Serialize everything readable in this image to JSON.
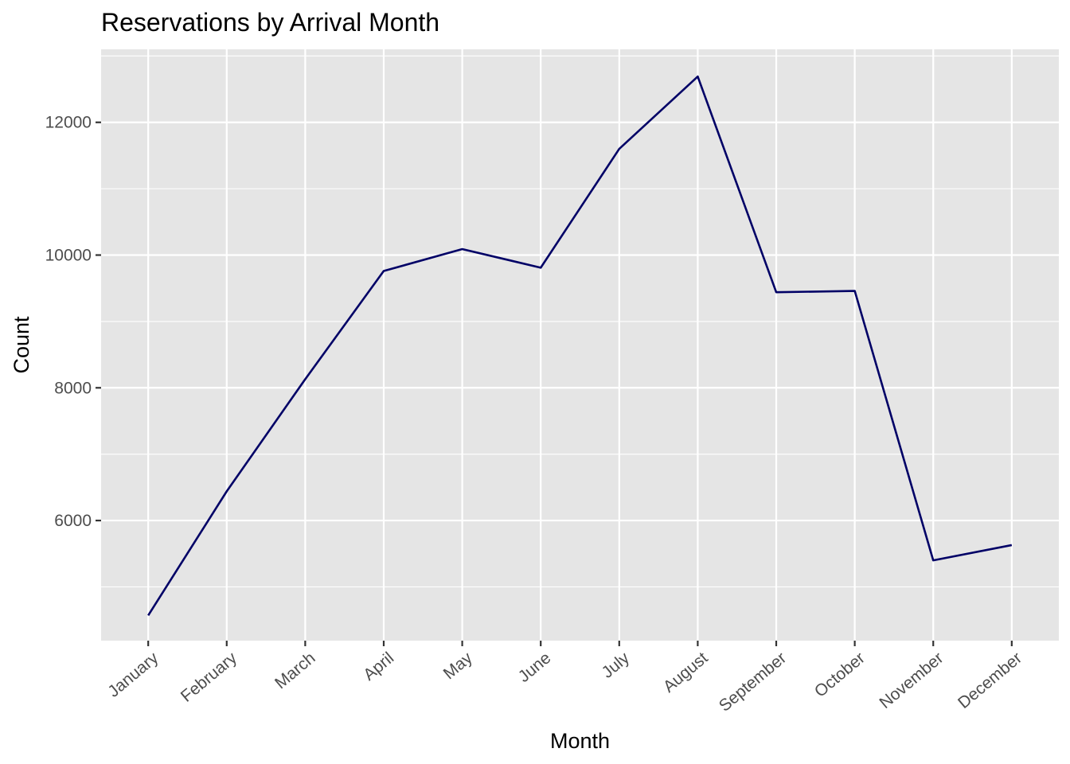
{
  "chart_data": {
    "type": "line",
    "title": "Reservations by Arrival Month",
    "xlabel": "Month",
    "ylabel": "Count",
    "categories": [
      "January",
      "February",
      "March",
      "April",
      "May",
      "June",
      "July",
      "August",
      "September",
      "October",
      "November",
      "December"
    ],
    "series": [
      {
        "values": [
          4570,
          6440,
          8130,
          9760,
          10090,
          9810,
          11600,
          12690,
          9440,
          9460,
          5400,
          5630
        ]
      }
    ],
    "ylim": [
      4190,
      13100
    ],
    "y_ticks": [
      6000,
      8000,
      10000,
      12000
    ],
    "y_tick_labels": [
      "6000",
      "8000",
      "10000",
      "12000"
    ],
    "grid": true,
    "line_color": "#000066",
    "panel_color": "#e5e5e5",
    "grid_color": "#ffffff",
    "x_tick_label_rotation": "45deg"
  }
}
